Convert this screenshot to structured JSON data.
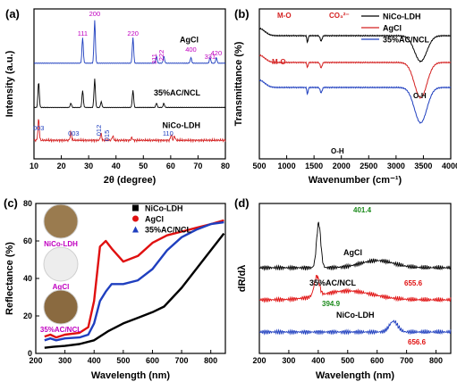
{
  "figure": {
    "panels": [
      {
        "id": "a",
        "label": "(a)",
        "type": "line",
        "xlabel": "2θ (degree)",
        "ylabel": "Intensity (a.u.)",
        "xlim": [
          10,
          80
        ],
        "xticks": [
          "10",
          "20",
          "30",
          "40",
          "50",
          "60",
          "70",
          "80"
        ],
        "series": [
          {
            "name": "AgCl",
            "color": "#1f3fbf",
            "offset": 0.62,
            "peaks": [
              [
                27.8,
                0.18
              ],
              [
                32.2,
                0.3
              ],
              [
                46.2,
                0.18
              ],
              [
                54.8,
                0.05
              ],
              [
                57.5,
                0.05
              ],
              [
                67.4,
                0.04
              ],
              [
                74.4,
                0.04
              ],
              [
                76.7,
                0.04
              ]
            ]
          },
          {
            "name": "35%AC/NCL",
            "color": "#000000",
            "offset": 0.31,
            "peaks": [
              [
                11.7,
                0.18
              ],
              [
                23.5,
                0.03
              ],
              [
                27.8,
                0.12
              ],
              [
                32.2,
                0.2
              ],
              [
                34.6,
                0.04
              ],
              [
                46.2,
                0.12
              ],
              [
                54.8,
                0.03
              ],
              [
                57.5,
                0.03
              ]
            ]
          },
          {
            "name": "NiCo-LDH",
            "color": "#d42020",
            "offset": 0.08,
            "peaks": [
              [
                11.7,
                0.15
              ],
              [
                23.5,
                0.06
              ],
              [
                34.5,
                0.05
              ],
              [
                38.8,
                0.03
              ],
              [
                45.8,
                0.02
              ],
              [
                60.2,
                0.04
              ],
              [
                61.4,
                0.03
              ]
            ]
          }
        ],
        "annotations": [
          {
            "text": "200",
            "x": 32.2,
            "color": "#c000c0"
          },
          {
            "text": "111",
            "x": 27.8,
            "color": "#c000c0"
          },
          {
            "text": "220",
            "x": 46.2,
            "color": "#c000c0"
          },
          {
            "text": "311",
            "x": 54.8,
            "color": "#c000c0"
          },
          {
            "text": "222",
            "x": 57.5,
            "color": "#c000c0"
          },
          {
            "text": "400",
            "x": 67.4,
            "color": "#c000c0"
          },
          {
            "text": "331",
            "x": 74.4,
            "color": "#c000c0"
          },
          {
            "text": "420",
            "x": 76.7,
            "color": "#c000c0"
          },
          {
            "text": "003",
            "x": 11.7,
            "color": "#1f3fbf"
          },
          {
            "text": "003",
            "x": 24.5,
            "color": "#1f3fbf"
          },
          {
            "text": "012",
            "x": 34.6,
            "color": "#1f3fbf"
          },
          {
            "text": "015",
            "x": 37.5,
            "color": "#1f3fbf"
          },
          {
            "text": "110",
            "x": 59.0,
            "color": "#1f3fbf"
          }
        ]
      },
      {
        "id": "b",
        "label": "(b)",
        "type": "line",
        "xlabel": "Wavenumber (cm⁻¹)",
        "ylabel": "Transmittance (%)",
        "xlim": [
          500,
          4000
        ],
        "xticks": [
          "500",
          "1000",
          "1500",
          "2000",
          "2500",
          "3000",
          "3500",
          "4000"
        ],
        "series": [
          {
            "name": "NiCo-LDH",
            "color": "#000000"
          },
          {
            "name": "AgCl",
            "color": "#d42020"
          },
          {
            "name": "35%AC/NCL",
            "color": "#1f3fbf"
          }
        ],
        "annotations": [
          "M-O",
          "CO₃²⁻",
          "M-O",
          "O-H",
          "O-H"
        ]
      },
      {
        "id": "c",
        "label": "(c)",
        "type": "line",
        "xlabel": "Wavelength (nm)",
        "ylabel": "Reflectance (%)",
        "xlim": [
          200,
          850
        ],
        "ylim": [
          0,
          80
        ],
        "xticks": [
          "200",
          "300",
          "400",
          "500",
          "600",
          "700",
          "800"
        ],
        "yticks": [
          "0",
          "20",
          "40",
          "60",
          "80"
        ],
        "series": [
          {
            "name": "NiCo-LDH",
            "color": "#000000",
            "marker": "square",
            "x": [
              230,
              260,
              300,
              350,
              400,
              450,
              500,
              550,
              600,
              640,
              700,
              750,
              800,
              845
            ],
            "y": [
              3,
              3.5,
              4,
              5,
              7,
              12,
              16,
              19,
              22,
              25,
              35,
              45,
              55,
              64
            ]
          },
          {
            "name": "AgCl",
            "color": "#e01010",
            "marker": "circle",
            "x": [
              230,
              250,
              270,
              300,
              350,
              380,
              400,
              420,
              440,
              460,
              500,
              550,
              600,
              650,
              700,
              750,
              800,
              845
            ],
            "y": [
              9,
              10,
              8.5,
              10,
              11,
              14,
              28,
              57,
              60,
              56,
              49,
              52,
              59,
              63,
              65,
              67,
              69,
              71
            ]
          },
          {
            "name": "35%AC/NCL",
            "color": "#1f3fbf",
            "marker": "triangle",
            "x": [
              230,
              250,
              270,
              300,
              350,
              380,
              400,
              420,
              440,
              460,
              500,
              550,
              600,
              650,
              700,
              750,
              800,
              845
            ],
            "y": [
              7,
              8,
              7,
              8,
              8.5,
              10,
              16,
              28,
              33,
              37,
              37,
              39,
              45,
              55,
              62,
              66,
              69,
              70
            ]
          }
        ],
        "inset_labels": [
          "NiCo-LDH",
          "AgCl",
          "35%AC/NCL"
        ]
      },
      {
        "id": "d",
        "label": "(d)",
        "type": "line",
        "xlabel": "Wavelength (nm)",
        "ylabel": "dR/dλ",
        "xlim": [
          200,
          850
        ],
        "xticks": [
          "200",
          "300",
          "400",
          "500",
          "600",
          "700",
          "800"
        ],
        "series": [
          {
            "name": "AgCl",
            "color": "#000000"
          },
          {
            "name": "35%AC/NCL",
            "color": "#e01010"
          },
          {
            "name": "NiCo-LDH",
            "color": "#1f3fbf"
          }
        ],
        "annotations": [
          {
            "text": "401.4",
            "x": 401.4,
            "color": "#1b8a1b"
          },
          {
            "text": "394.9",
            "x": 394.9,
            "color": "#1b8a1b"
          },
          {
            "text": "655.6",
            "x": 655.6,
            "color": "#e01010"
          },
          {
            "text": "656.6",
            "x": 656.6,
            "color": "#e01010"
          }
        ]
      }
    ]
  }
}
